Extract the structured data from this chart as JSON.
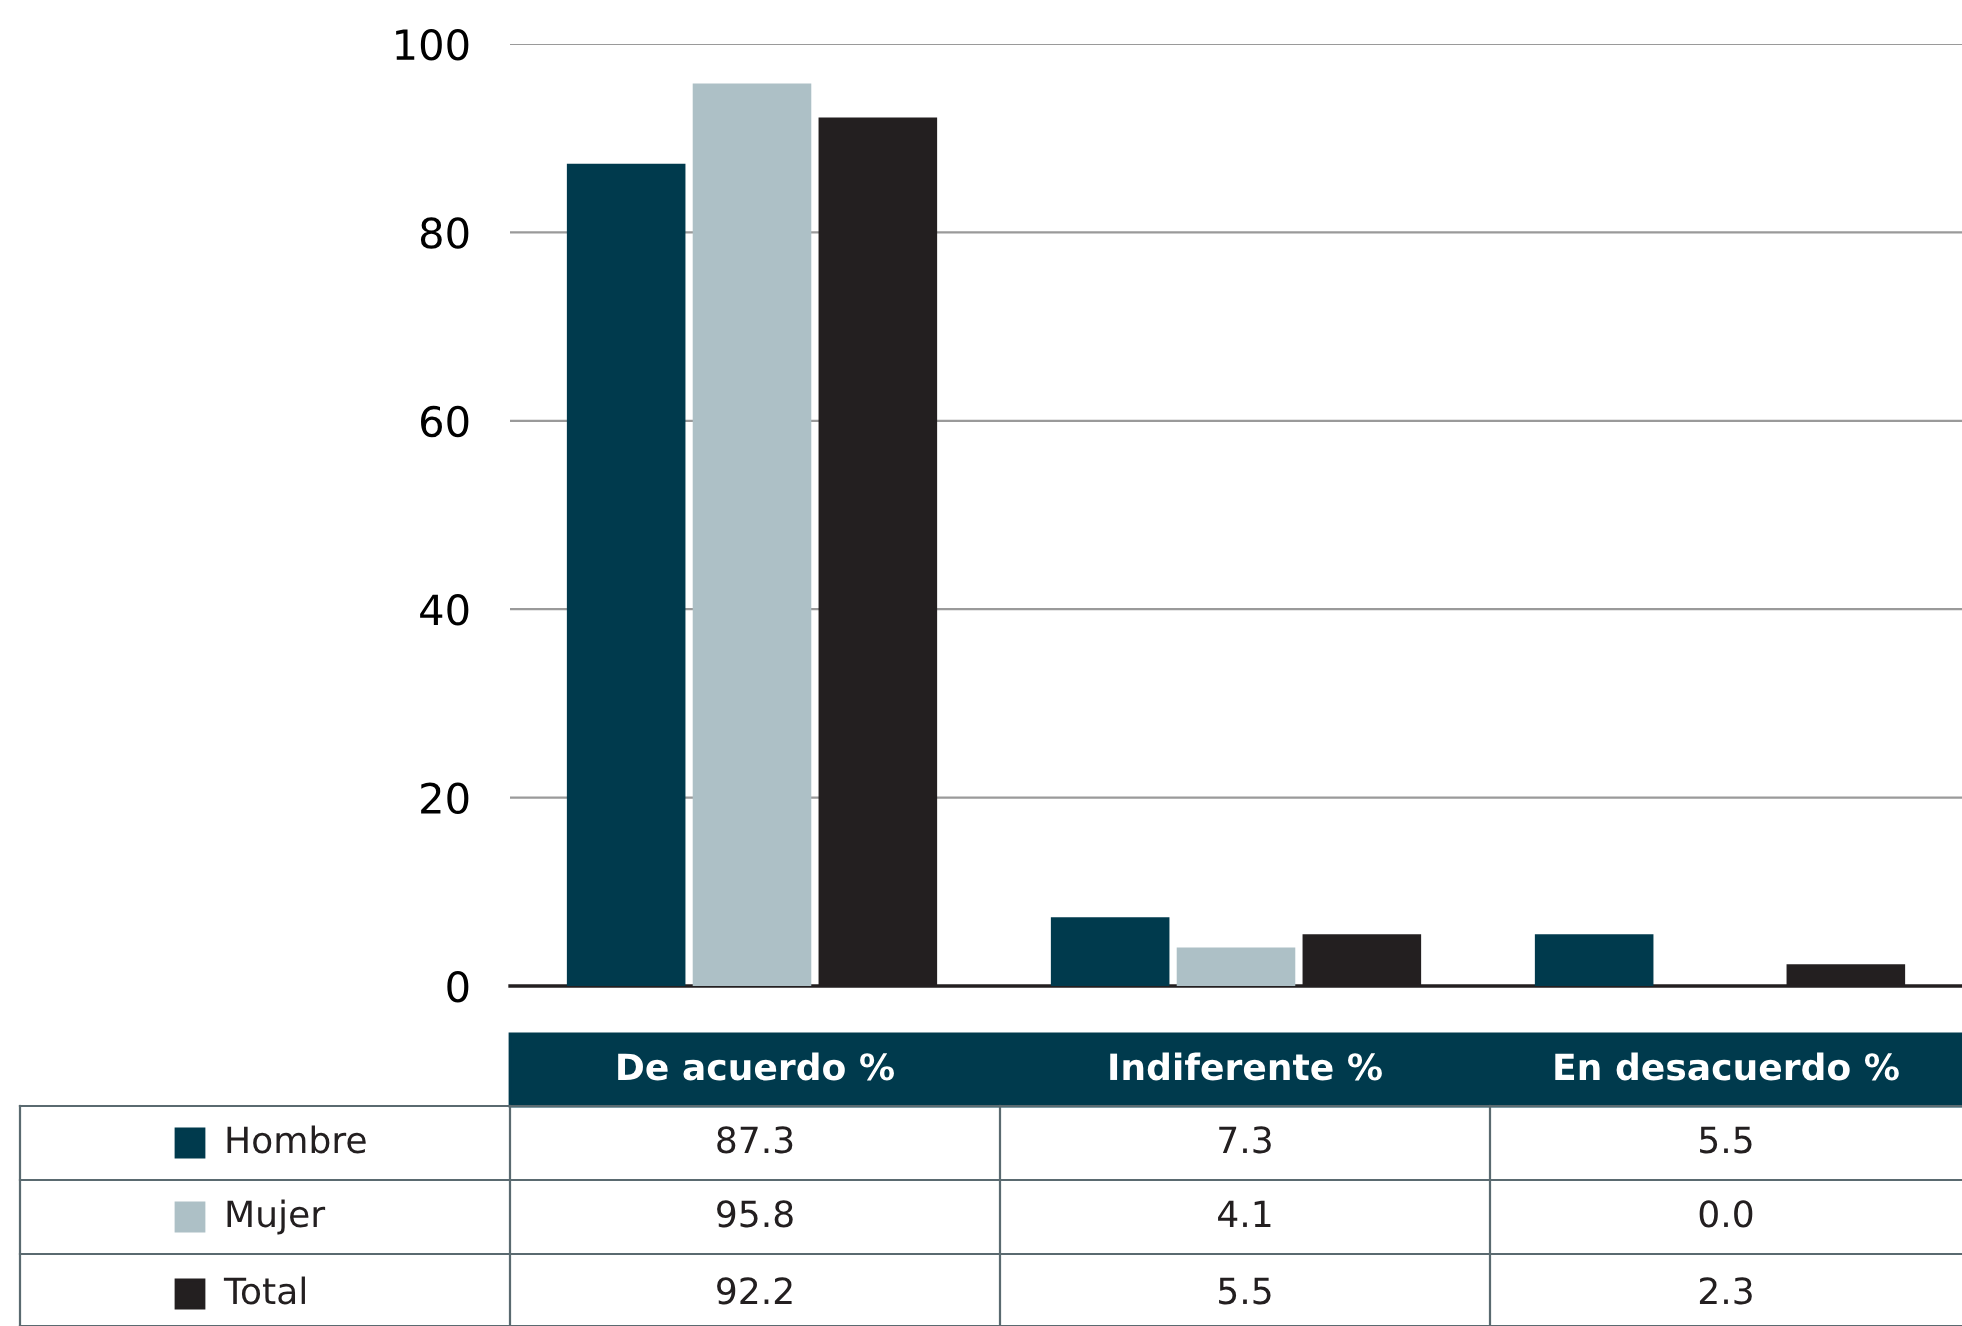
{
  "chart_data": {
    "type": "bar",
    "categories": [
      "De acuerdo %",
      "Indiferente %",
      "En desacuerdo %"
    ],
    "series": [
      {
        "name": "Hombre",
        "color": "#003a4d",
        "values": [
          87.3,
          7.3,
          5.5
        ],
        "value_labels": [
          "87.3",
          "7.3",
          "5.5"
        ]
      },
      {
        "name": "Mujer",
        "color": "#adc0c6",
        "values": [
          95.8,
          4.1,
          0.0
        ],
        "value_labels": [
          "95.8",
          "4.1",
          "0.0"
        ]
      },
      {
        "name": "Total",
        "color": "#231f20",
        "values": [
          92.2,
          5.5,
          2.3
        ],
        "value_labels": [
          "92.2",
          "5.5",
          "2.3"
        ]
      }
    ],
    "ylim": [
      0,
      100
    ],
    "yticks": [
      0,
      20,
      40,
      60,
      80,
      100
    ],
    "grid": "y",
    "legend": "bottom"
  }
}
